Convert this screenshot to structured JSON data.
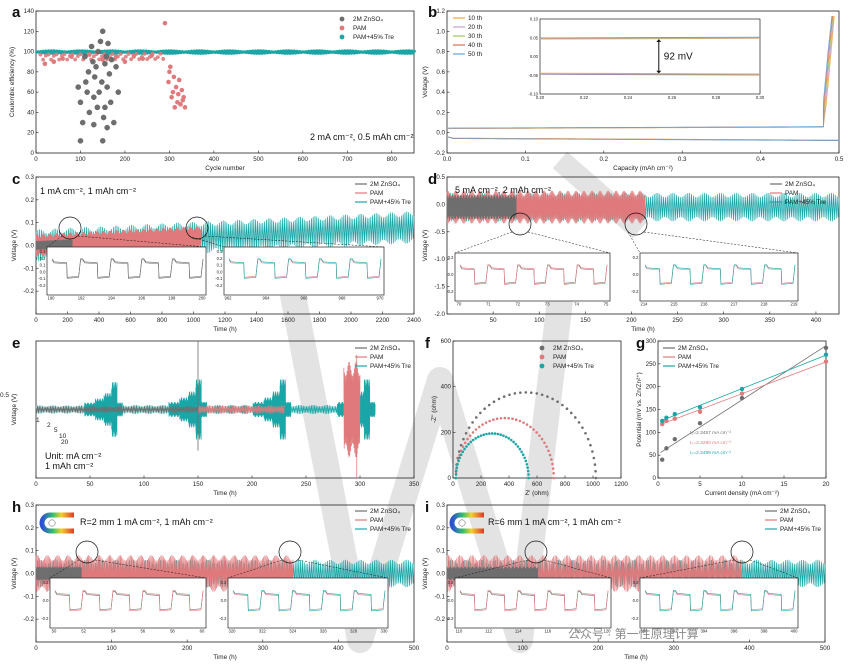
{
  "colors": {
    "znso4": "#6e6e6e",
    "pam": "#e0797b",
    "tre": "#1aa6a6",
    "axis": "#222222"
  },
  "panels": {
    "a": "a",
    "b": "b",
    "c": "c",
    "d": "d",
    "e": "e",
    "f": "f",
    "g": "g",
    "h": "h",
    "i": "i"
  },
  "legend": {
    "znso4": "2M ZnSO₄",
    "pam": "PAM",
    "tre": "PAM+45% Tre"
  },
  "watermark": "公众号 · 第一性原理计算",
  "chart_data": [
    {
      "id": "a",
      "type": "scatter",
      "xlabel": "Cycle number",
      "ylabel": "Coulombic efficiency (%)",
      "xlim": [
        0,
        850
      ],
      "ylim": [
        0,
        140
      ],
      "xticks": [
        0,
        100,
        200,
        300,
        400,
        500,
        600,
        700,
        800
      ],
      "yticks": [
        0,
        20,
        40,
        60,
        80,
        100,
        120,
        140
      ],
      "annotation": "2 mA cm⁻², 0.5 mAh cm⁻²",
      "legend_position": "top-right",
      "series": [
        {
          "name": "2M ZnSO₄",
          "color": "#6e6e6e",
          "points": [
            [
              100,
              50
            ],
            [
              105,
              30
            ],
            [
              110,
              95
            ],
            [
              112,
              70
            ],
            [
              115,
              60
            ],
            [
              118,
              80
            ],
            [
              120,
              40
            ],
            [
              125,
              105
            ],
            [
              128,
              90
            ],
            [
              130,
              55
            ],
            [
              132,
              75
            ],
            [
              135,
              85
            ],
            [
              138,
              45
            ],
            [
              140,
              100
            ],
            [
              142,
              60
            ],
            [
              145,
              110
            ],
            [
              148,
              70
            ],
            [
              150,
              120
            ],
            [
              152,
              35
            ],
            [
              155,
              88
            ],
            [
              158,
              95
            ],
            [
              160,
              65
            ],
            [
              162,
              108
            ],
            [
              165,
              78
            ],
            [
              168,
              50
            ],
            [
              170,
              92
            ],
            [
              175,
              30
            ],
            [
              180,
              85
            ],
            [
              95,
              65
            ],
            [
              185,
              60
            ],
            [
              100,
              12
            ],
            [
              150,
              12
            ],
            [
              160,
              25
            ],
            [
              130,
              28
            ],
            [
              155,
              45
            ]
          ]
        },
        {
          "name": "PAM",
          "color": "#e0797b",
          "points": [
            [
              20,
              88
            ],
            [
              40,
              90
            ],
            [
              60,
              93
            ],
            [
              80,
              95
            ],
            [
              120,
              97
            ],
            [
              150,
              92
            ],
            [
              180,
              95
            ],
            [
              200,
              90
            ],
            [
              220,
              96
            ],
            [
              240,
              93
            ],
            [
              260,
              96
            ],
            [
              290,
              128
            ],
            [
              298,
              70
            ],
            [
              300,
              80
            ],
            [
              302,
              85
            ],
            [
              305,
              55
            ],
            [
              308,
              60
            ],
            [
              310,
              75
            ],
            [
              312,
              45
            ],
            [
              315,
              65
            ],
            [
              318,
              50
            ],
            [
              320,
              58
            ],
            [
              322,
              72
            ],
            [
              325,
              48
            ],
            [
              328,
              62
            ],
            [
              330,
              52
            ],
            [
              332,
              55
            ],
            [
              335,
              45
            ]
          ]
        },
        {
          "name": "PAM+45% Tre",
          "color": "#1aa6a6",
          "value": 99.5,
          "range": [
            0,
            850
          ]
        }
      ]
    },
    {
      "id": "b",
      "type": "line",
      "xlabel": "Capacity (mAh cm⁻²)",
      "ylabel": "Voltage (V)",
      "xlim": [
        0,
        0.5
      ],
      "ylim": [
        -0.2,
        1.2
      ],
      "xticks": [
        0.0,
        0.1,
        0.2,
        0.3,
        0.4,
        0.5
      ],
      "yticks": [
        -0.2,
        0.0,
        0.2,
        0.4,
        0.6,
        0.8,
        1.0,
        1.2
      ],
      "series_names": [
        "10 th",
        "20 th",
        "30 th",
        "40 th",
        "50 th"
      ],
      "series_colors": [
        "#f2a640",
        "#c9a0dc",
        "#9fc75a",
        "#e16a5e",
        "#6aa4d8"
      ],
      "charge_plateau": 0.04,
      "discharge_plateau": -0.052,
      "inset": {
        "xlim": [
          0.2,
          0.3
        ],
        "ylim": [
          -0.1,
          0.1
        ],
        "xticks": [
          0.2,
          0.22,
          0.24,
          0.26,
          0.28,
          0.3
        ],
        "yticks": [
          -0.1,
          -0.05,
          0.0,
          0.05,
          0.1
        ],
        "gap_label": "92 mV"
      }
    },
    {
      "id": "c",
      "type": "line",
      "xlabel": "Time (h)",
      "ylabel": "Voltage (V)",
      "xlim": [
        0,
        2400
      ],
      "ylim": [
        -0.3,
        0.3
      ],
      "xticks": [
        0,
        200,
        400,
        600,
        800,
        1000,
        1200,
        1400,
        1600,
        1800,
        2000,
        2200,
        2400
      ],
      "yticks": [
        0.3,
        0.2,
        0.1,
        0.0,
        -0.1,
        -0.2
      ],
      "condition": "1 mA cm⁻², 1 mAh cm⁻²",
      "series": [
        {
          "name": "2M ZnSO₄",
          "color": "#6e6e6e",
          "end_h": 230,
          "amp": 0.06
        },
        {
          "name": "PAM",
          "color": "#e0797b",
          "end_h": 1050,
          "amp": 0.07
        },
        {
          "name": "PAM+45% Tre",
          "color": "#1aa6a6",
          "end_h": 2400,
          "amp": 0.08
        }
      ],
      "inset1": {
        "xticks": [
          190,
          192,
          194,
          196,
          198,
          200
        ],
        "yticks": [
          0.3,
          0.2,
          0.1,
          0.0,
          -0.1,
          -0.2
        ]
      },
      "inset2": {
        "xticks": [
          962,
          964,
          966,
          968,
          970
        ],
        "yticks": [
          0.3,
          0.2,
          0.1,
          0.0,
          -0.1,
          -0.2
        ]
      }
    },
    {
      "id": "d",
      "type": "line",
      "xlabel": "Time (h)",
      "ylabel": "Voltage (V)",
      "xlim": [
        0,
        425
      ],
      "ylim": [
        -2.0,
        0.5
      ],
      "xticks": [
        50,
        100,
        150,
        200,
        250,
        300,
        350,
        400
      ],
      "yticks": [
        0.5,
        0.0,
        -0.5,
        -1.0,
        -1.5,
        -2.0
      ],
      "condition": "5 mA cm⁻², 2 mAh cm⁻²",
      "series": [
        {
          "name": "2M ZnSO₄",
          "color": "#6e6e6e",
          "end_h": 75
        },
        {
          "name": "PAM",
          "color": "#e0797b",
          "end_h": 215
        },
        {
          "name": "PAM+45% Tre",
          "color": "#1aa6a6",
          "end_h": 425
        }
      ],
      "inset1": {
        "xticks": [
          70,
          71,
          72,
          73,
          74,
          75
        ]
      },
      "inset2": {
        "xticks": [
          214,
          215,
          216,
          217,
          218,
          219
        ]
      }
    },
    {
      "id": "e",
      "type": "line",
      "xlabel": "Time (h)",
      "ylabel": "Voltage (V)",
      "xlim": [
        0,
        350
      ],
      "ylim": [
        -0.5,
        0.5
      ],
      "xticks": [
        0,
        50,
        100,
        150,
        200,
        250,
        300,
        350
      ],
      "rate_labels": [
        "0.5",
        "1",
        "2",
        "5",
        "10",
        "20"
      ],
      "unit_note": [
        "Unit: mA cm⁻²",
        "1 mAh cm⁻²"
      ]
    },
    {
      "id": "f",
      "type": "scatter",
      "xlabel": "Z' (ohm)",
      "ylabel": "-Z'' (ohm)",
      "xlim": [
        0,
        1200
      ],
      "ylim": [
        0,
        600
      ],
      "xticks": [
        0,
        200,
        400,
        600,
        800,
        1000,
        1200
      ],
      "yticks": [
        0,
        200,
        400,
        600
      ],
      "series": [
        {
          "name": "2M ZnSO₄",
          "color": "#6e6e6e",
          "rct": 1000
        },
        {
          "name": "PAM",
          "color": "#e0797b",
          "rct": 700
        },
        {
          "name": "PAM+45% Tre",
          "color": "#1aa6a6",
          "rct": 520
        }
      ]
    },
    {
      "id": "g",
      "type": "scatter",
      "xlabel": "Current density (mA cm⁻²)",
      "ylabel": "Potential (mV vs. Zn/Zn²⁺)",
      "xlim": [
        0,
        20
      ],
      "ylim": [
        0,
        300
      ],
      "xticks": [
        0,
        5,
        10,
        15,
        20
      ],
      "yticks": [
        0,
        50,
        100,
        150,
        200,
        250,
        300
      ],
      "x": [
        0.5,
        1,
        2,
        5,
        10,
        20
      ],
      "series": [
        {
          "name": "2M ZnSO₄",
          "color": "#6e6e6e",
          "values": [
            40,
            65,
            85,
            120,
            175,
            285
          ],
          "label": "I₀=2.3457 mA cm⁻²"
        },
        {
          "name": "PAM",
          "color": "#e0797b",
          "values": [
            118,
            125,
            130,
            145,
            185,
            255
          ],
          "label": "I₀=2.3280 mA cm⁻²"
        },
        {
          "name": "PAM+45% Tre",
          "color": "#1aa6a6",
          "values": [
            125,
            132,
            140,
            155,
            195,
            270
          ],
          "label": "I₀=2.2489 mA cm⁻²"
        }
      ]
    },
    {
      "id": "h",
      "type": "line",
      "xlabel": "Time (h)",
      "ylabel": "Voltage (V)",
      "xlim": [
        0,
        500
      ],
      "ylim": [
        -0.3,
        0.3
      ],
      "xticks": [
        0,
        100,
        200,
        300,
        400,
        500
      ],
      "yticks": [
        0.3,
        0.2,
        0.1,
        0.0,
        -0.1,
        -0.2
      ],
      "condition": "R=2 mm   1 mA cm⁻², 1 mAh cm⁻²",
      "series": [
        {
          "name": "2M ZnSO₄",
          "color": "#6e6e6e",
          "end_h": 60
        },
        {
          "name": "PAM",
          "color": "#e0797b",
          "end_h": 340
        },
        {
          "name": "PAM+45% Tre",
          "color": "#1aa6a6",
          "end_h": 500
        }
      ],
      "inset1": {
        "xticks": [
          50,
          52,
          54,
          56,
          58,
          60
        ]
      },
      "inset2": {
        "xticks": [
          320,
          322,
          324,
          326,
          328,
          330
        ]
      }
    },
    {
      "id": "i",
      "type": "line",
      "xlabel": "Time (h)",
      "ylabel": "Voltage (V)",
      "xlim": [
        0,
        500
      ],
      "ylim": [
        -0.3,
        0.3
      ],
      "xticks": [
        0,
        100,
        200,
        300,
        400,
        500
      ],
      "yticks": [
        0.3,
        0.2,
        0.1,
        0.0,
        -0.1,
        -0.2
      ],
      "condition": "R=6 mm   1 mA cm⁻², 1 mAh cm⁻²",
      "series": [
        {
          "name": "2M ZnSO₄",
          "color": "#6e6e6e",
          "end_h": 120
        },
        {
          "name": "PAM",
          "color": "#e0797b",
          "end_h": 390
        },
        {
          "name": "PAM+45% Tre",
          "color": "#1aa6a6",
          "end_h": 500
        }
      ],
      "inset1": {
        "xticks": [
          110,
          112,
          114,
          116,
          118,
          120
        ]
      },
      "inset2": {
        "xticks": [
          390,
          392,
          394,
          396,
          398,
          400
        ]
      }
    }
  ]
}
